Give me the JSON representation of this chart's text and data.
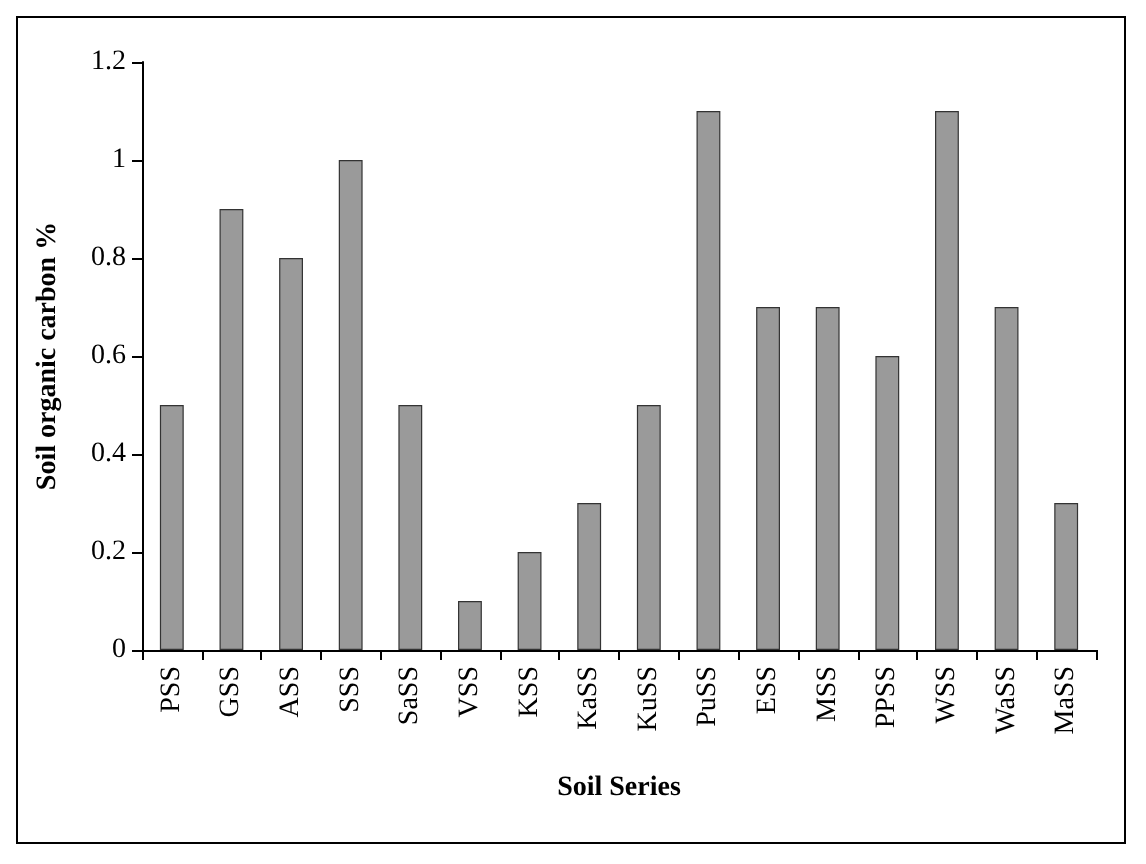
{
  "chart_data": {
    "type": "bar",
    "xlabel": "Soil Series",
    "ylabel": "Soil organic carbon %",
    "categories": [
      "PSS",
      "GSS",
      "ASS",
      "SSS",
      "SaSS",
      "VSS",
      "KSS",
      "KaSS",
      "KuSS",
      "PuSS",
      "ESS",
      "MSS",
      "PPSS",
      "WSS",
      "WaSS",
      "MaSS"
    ],
    "values": [
      0.5,
      0.9,
      0.8,
      1.0,
      0.5,
      0.1,
      0.2,
      0.3,
      0.5,
      1.1,
      0.7,
      0.7,
      0.6,
      1.1,
      0.7,
      0.3
    ],
    "color": "#9a9a9a",
    "ylim": [
      0,
      1.2
    ],
    "yticks": [
      0,
      0.2,
      0.4,
      0.6,
      0.8,
      1,
      1.2
    ],
    "grid": false
  }
}
